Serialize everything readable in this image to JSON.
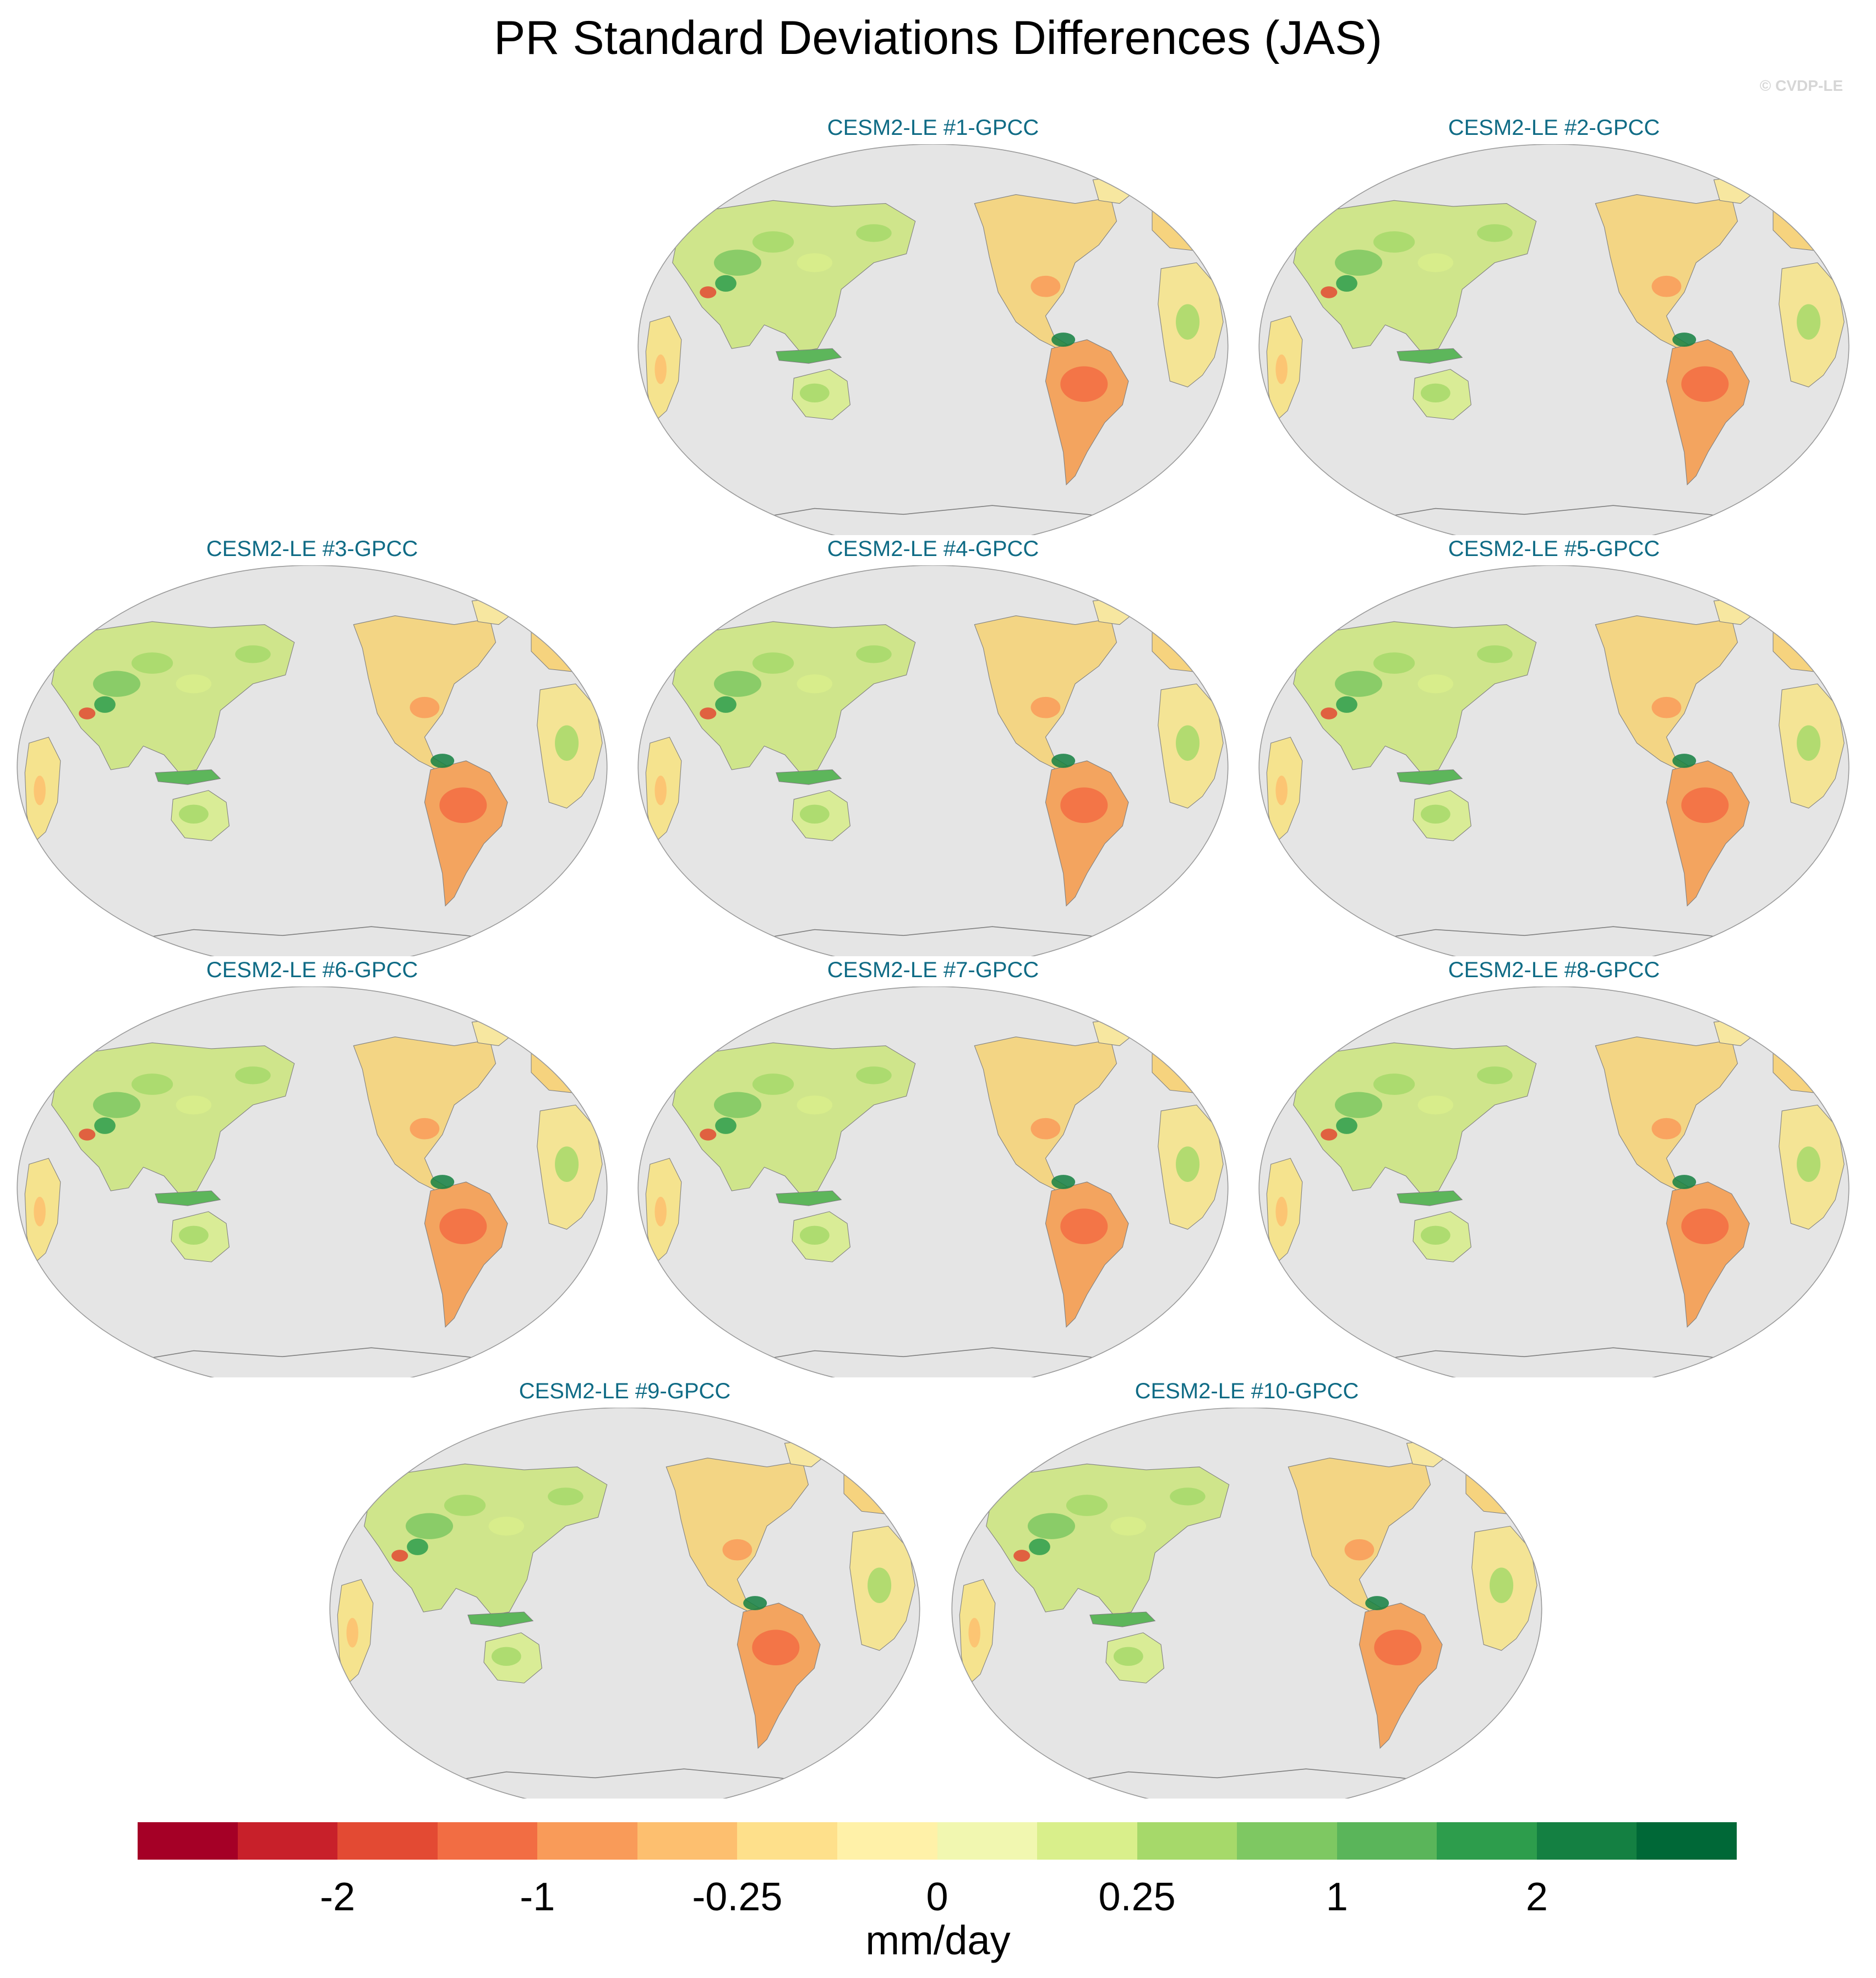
{
  "title": "PR Standard Deviations Differences (JAS)",
  "watermark": "© CVDP-LE",
  "colors": {
    "ocean": "#e5e5e5",
    "panel_title": "#0f6b85",
    "coast": "#7f7f7f"
  },
  "panels": [
    {
      "label": "CESM2-LE #1-GPCC"
    },
    {
      "label": "CESM2-LE #2-GPCC"
    },
    {
      "label": "CESM2-LE #3-GPCC"
    },
    {
      "label": "CESM2-LE #4-GPCC"
    },
    {
      "label": "CESM2-LE #5-GPCC"
    },
    {
      "label": "CESM2-LE #6-GPCC"
    },
    {
      "label": "CESM2-LE #7-GPCC"
    },
    {
      "label": "CESM2-LE #8-GPCC"
    },
    {
      "label": "CESM2-LE #9-GPCC"
    },
    {
      "label": "CESM2-LE #10-GPCC"
    }
  ],
  "colorbar": {
    "colors": [
      "#a50026",
      "#c8202a",
      "#e34a33",
      "#f26d43",
      "#f99b59",
      "#fdbf6f",
      "#fee08b",
      "#fff1a8",
      "#f1f7b0",
      "#d9ef8b",
      "#a6d96a",
      "#7ec862",
      "#5ab55a",
      "#2d9d4c",
      "#148042",
      "#006837"
    ],
    "labels": [
      "-2",
      "-1",
      "-0.25",
      "0",
      "0.25",
      "1",
      "2"
    ],
    "label_ticks": [
      2,
      4,
      6,
      8,
      10,
      12,
      14
    ],
    "units": "mm/day"
  },
  "legend_style": "horizontal colorbar at bottom"
}
